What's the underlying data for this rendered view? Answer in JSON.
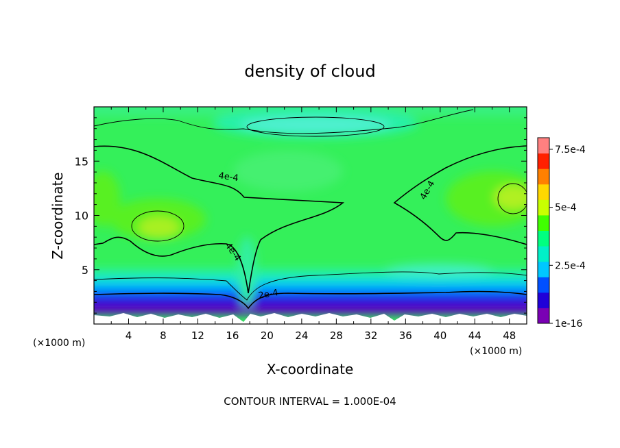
{
  "chart_data": {
    "type": "heatmap",
    "title": "density of cloud",
    "xlabel": "X-coordinate",
    "ylabel": "Z-coordinate",
    "x_unit": "(×1000 m)",
    "z_unit": "(×1000 m)",
    "xlim": [
      0,
      50
    ],
    "ylim": [
      0,
      20
    ],
    "x_ticks": [
      4,
      8,
      12,
      16,
      20,
      24,
      28,
      32,
      36,
      40,
      44,
      48
    ],
    "y_ticks": [
      5,
      10,
      15
    ],
    "footer": "CONTOUR INTERVAL = 1.000E-04",
    "colorbar": {
      "min": 1e-16,
      "max": 0.0008,
      "tick_values": [
        1e-16,
        0.00025,
        0.0005,
        0.00075
      ],
      "tick_labels": [
        "1e-16",
        "2.5e-4",
        "5e-4",
        "7.5e-4"
      ],
      "colors": [
        "#7a00b4",
        "#2000d8",
        "#0050ff",
        "#00c8ff",
        "#00f0c8",
        "#00ff80",
        "#40ff00",
        "#c8ff00",
        "#ffd800",
        "#ff8000",
        "#ff2000",
        "#ff8080"
      ]
    },
    "contour_labels": [
      {
        "text": "4e-4",
        "x": 15.5,
        "y": 13.3,
        "rotate": 8
      },
      {
        "text": "4e-4",
        "x": 15.8,
        "y": 6.5,
        "rotate": 55
      },
      {
        "text": "4e-4",
        "x": 38.8,
        "y": 12.2,
        "rotate": -60
      },
      {
        "text": "2e-4",
        "x": 20.2,
        "y": 2.5,
        "rotate": -10
      }
    ],
    "features": [
      {
        "name": "max-left",
        "x": 7.5,
        "z": 8.5,
        "value": 0.00053
      },
      {
        "name": "max-right",
        "x": 48,
        "z": 11.8,
        "value": 0.00052
      },
      {
        "name": "min-upper-center",
        "x": 33,
        "z": 18,
        "value": 0.0003
      },
      {
        "name": "min-center-valley",
        "x": 18,
        "z": 2,
        "value": 0.0002
      }
    ]
  }
}
